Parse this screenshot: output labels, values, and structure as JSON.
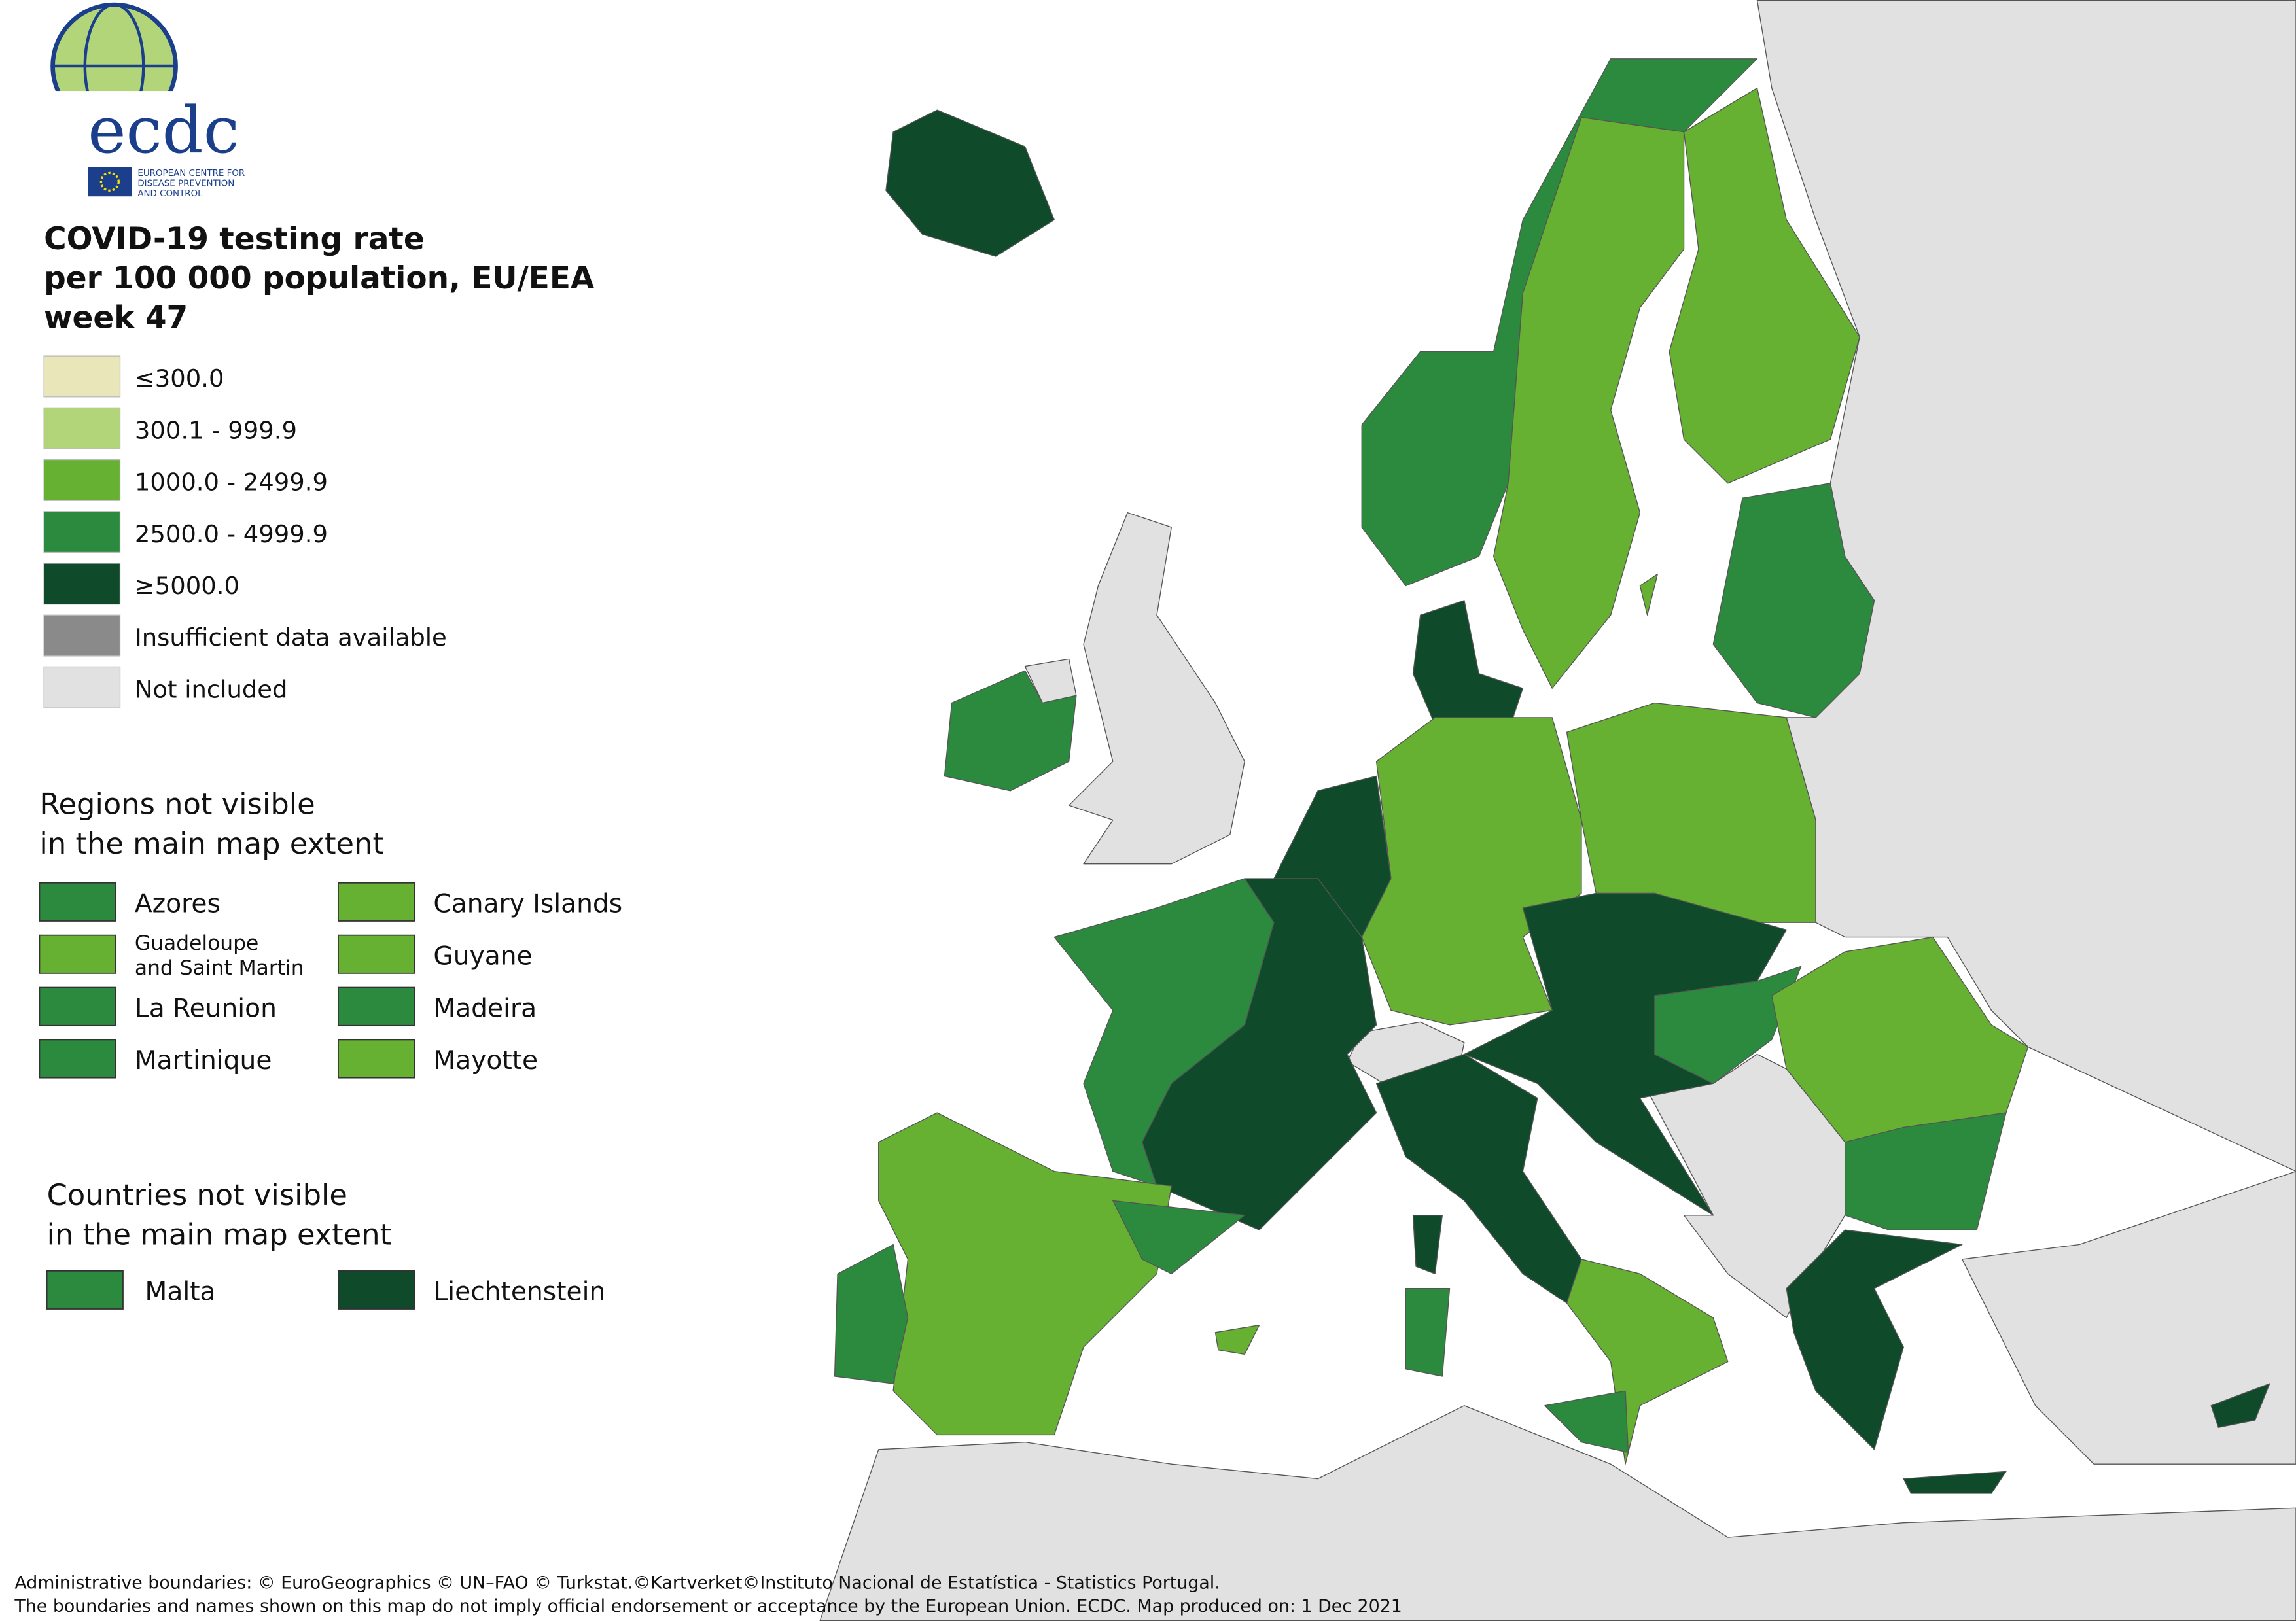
{
  "logo": {
    "name": "ecdc",
    "lines": [
      "EUROPEAN CENTRE FOR",
      "DISEASE PREVENTION",
      "AND CONTROL"
    ]
  },
  "title": [
    "COVID-19 testing rate",
    "per 100 000 population, EU/EEA",
    "week 47"
  ],
  "legend": [
    {
      "label": "≤300.0",
      "color": "#e9e7ba"
    },
    {
      "label": "300.1 - 999.9",
      "color": "#b3d57a"
    },
    {
      "label": "1000.0 - 2499.9",
      "color": "#66b032"
    },
    {
      "label": "2500.0 - 4999.9",
      "color": "#2b8a3e"
    },
    {
      "label": "≥5000.0",
      "color": "#0f4a2a"
    },
    {
      "label": "Insufficient data available",
      "color": "#8a8a8a"
    },
    {
      "label": "Not included",
      "color": "#e1e1e1"
    }
  ],
  "regions": {
    "title": [
      "Regions not visible",
      "in the main map extent"
    ],
    "items": [
      {
        "label": "Azores",
        "color": "#2b8a3e"
      },
      {
        "label": "Canary Islands",
        "color": "#66b032"
      },
      {
        "label": [
          "Guadeloupe",
          "and Saint Martin"
        ],
        "color": "#66b032"
      },
      {
        "label": "Guyane",
        "color": "#66b032"
      },
      {
        "label": "La Reunion",
        "color": "#2b8a3e"
      },
      {
        "label": "Madeira",
        "color": "#2b8a3e"
      },
      {
        "label": "Martinique",
        "color": "#2b8a3e"
      },
      {
        "label": "Mayotte",
        "color": "#66b032"
      }
    ]
  },
  "countries": {
    "title": [
      "Countries not visible",
      "in the main map extent"
    ],
    "items": [
      {
        "label": "Malta",
        "color": "#2b8a3e"
      },
      {
        "label": "Liechtenstein",
        "color": "#0f4a2a"
      }
    ]
  },
  "footer": [
    "Administrative boundaries: © EuroGeographics © UN–FAO © Turkstat.©Kartverket©Instituto Nacional de Estatística - Statistics Portugal.",
    "The boundaries and names shown on this map do not imply official endorsement or acceptance by the European Union. ECDC. Map produced on: 1 Dec 2021"
  ]
}
